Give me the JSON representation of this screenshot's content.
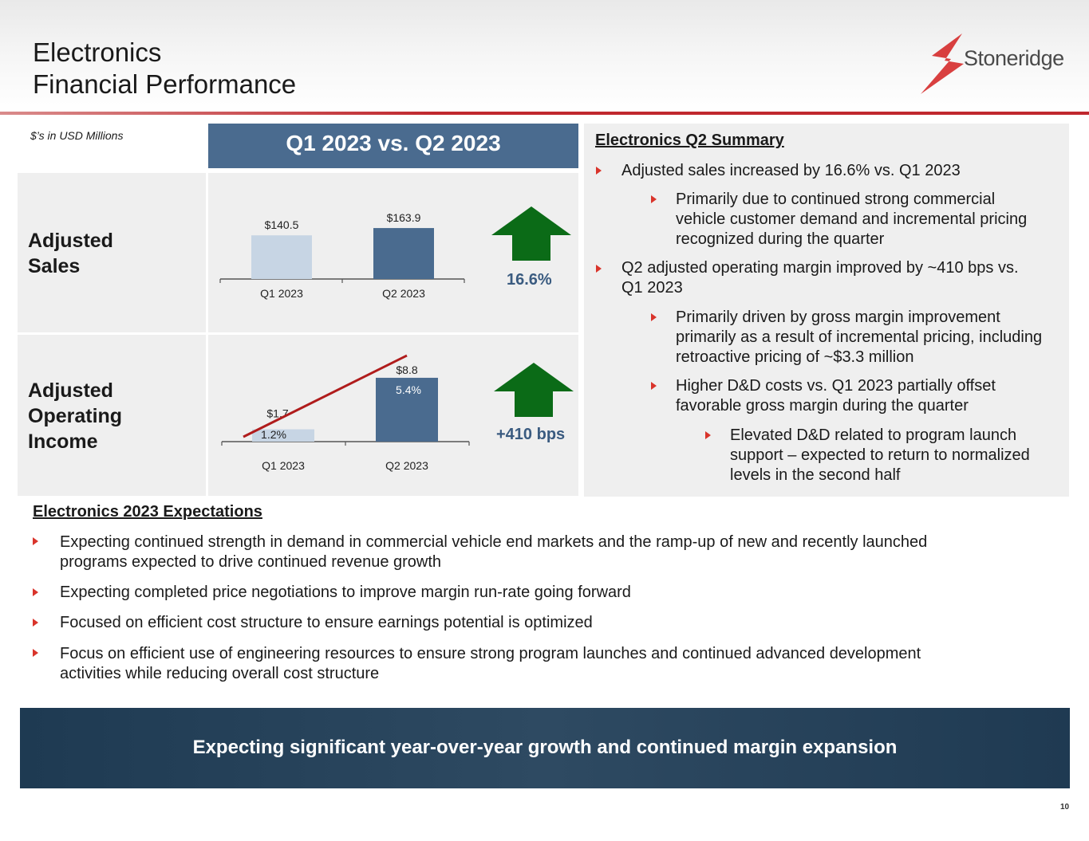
{
  "header": {
    "title_line1": "Electronics",
    "title_line2": "Financial Performance",
    "logo_text": "Stoneridge"
  },
  "units_note": "$’s in USD Millions",
  "comparison_header": "Q1 2023 vs. Q2 2023",
  "rows": {
    "sales": {
      "label_line1": "Adjusted",
      "label_line2": "Sales",
      "change": "16.6%"
    },
    "operating": {
      "label_line1": "Adjusted",
      "label_line2": "Operating",
      "label_line3": "Income",
      "change": "+410 bps"
    }
  },
  "chart_data": [
    {
      "type": "bar",
      "title": "Adjusted Sales",
      "categories": [
        "Q1 2023",
        "Q2 2023"
      ],
      "values": [
        140.5,
        163.9
      ],
      "value_labels": [
        "$140.5",
        "$163.9"
      ],
      "colors": [
        "#c7d5e4",
        "#4a6b8f"
      ]
    },
    {
      "type": "bar",
      "title": "Adjusted Operating Income",
      "categories": [
        "Q1 2023",
        "Q2 2023"
      ],
      "values": [
        1.7,
        8.8
      ],
      "value_labels": [
        "$1.7",
        "$8.8"
      ],
      "margin_series": {
        "name": "Operating margin",
        "values": [
          1.2,
          5.4
        ],
        "labels": [
          "1.2%",
          "5.4%"
        ],
        "color": "#b01c1c"
      },
      "colors": [
        "#c7d5e4",
        "#4a6b8f"
      ]
    }
  ],
  "summary": {
    "title": "Electronics Q2 Summary",
    "b1": "Adjusted sales increased by 16.6% vs. Q1 2023",
    "b1a_l1": "Primarily due to continued strong commercial",
    "b1a_l2": "vehicle customer demand and incremental pricing",
    "b1a_l3": "recognized during the quarter",
    "b2_l1": "Q2 adjusted operating margin improved by ~410 bps vs.",
    "b2_l2": "Q1 2023",
    "b2a_l1": "Primarily driven by gross margin improvement",
    "b2a_l2": "primarily as a result of incremental pricing, including",
    "b2a_l3": "retroactive pricing of ~$3.3 million",
    "b2b_l1": "Higher D&D costs vs. Q1 2023 partially offset",
    "b2b_l2": "favorable gross margin during the quarter",
    "b2b1_l1": "Elevated D&D related to program launch",
    "b2b1_l2": "support – expected to return to normalized",
    "b2b1_l3": "levels in the second half"
  },
  "expectations": {
    "title": "Electronics 2023 Expectations",
    "e1_l1": "Expecting continued strength in demand in commercial vehicle end markets and the ramp-up of new and recently launched",
    "e1_l2": "programs expected to drive continued revenue growth",
    "e2": "Expecting completed price negotiations to improve margin run-rate going forward",
    "e3": "Focused on efficient cost structure to ensure earnings potential is optimized",
    "e4_l1": "Focus on efficient use of engineering resources to ensure strong program launches and continued advanced development",
    "e4_l2": "activities while reducing overall cost structure"
  },
  "banner": "Expecting significant year-over-year growth and continued margin expansion",
  "page_number": "10",
  "colors": {
    "accent_red": "#c0282e",
    "navy": "#4a6b8f",
    "arrow_green": "#0b6b17",
    "bullet": "#d9342b"
  }
}
